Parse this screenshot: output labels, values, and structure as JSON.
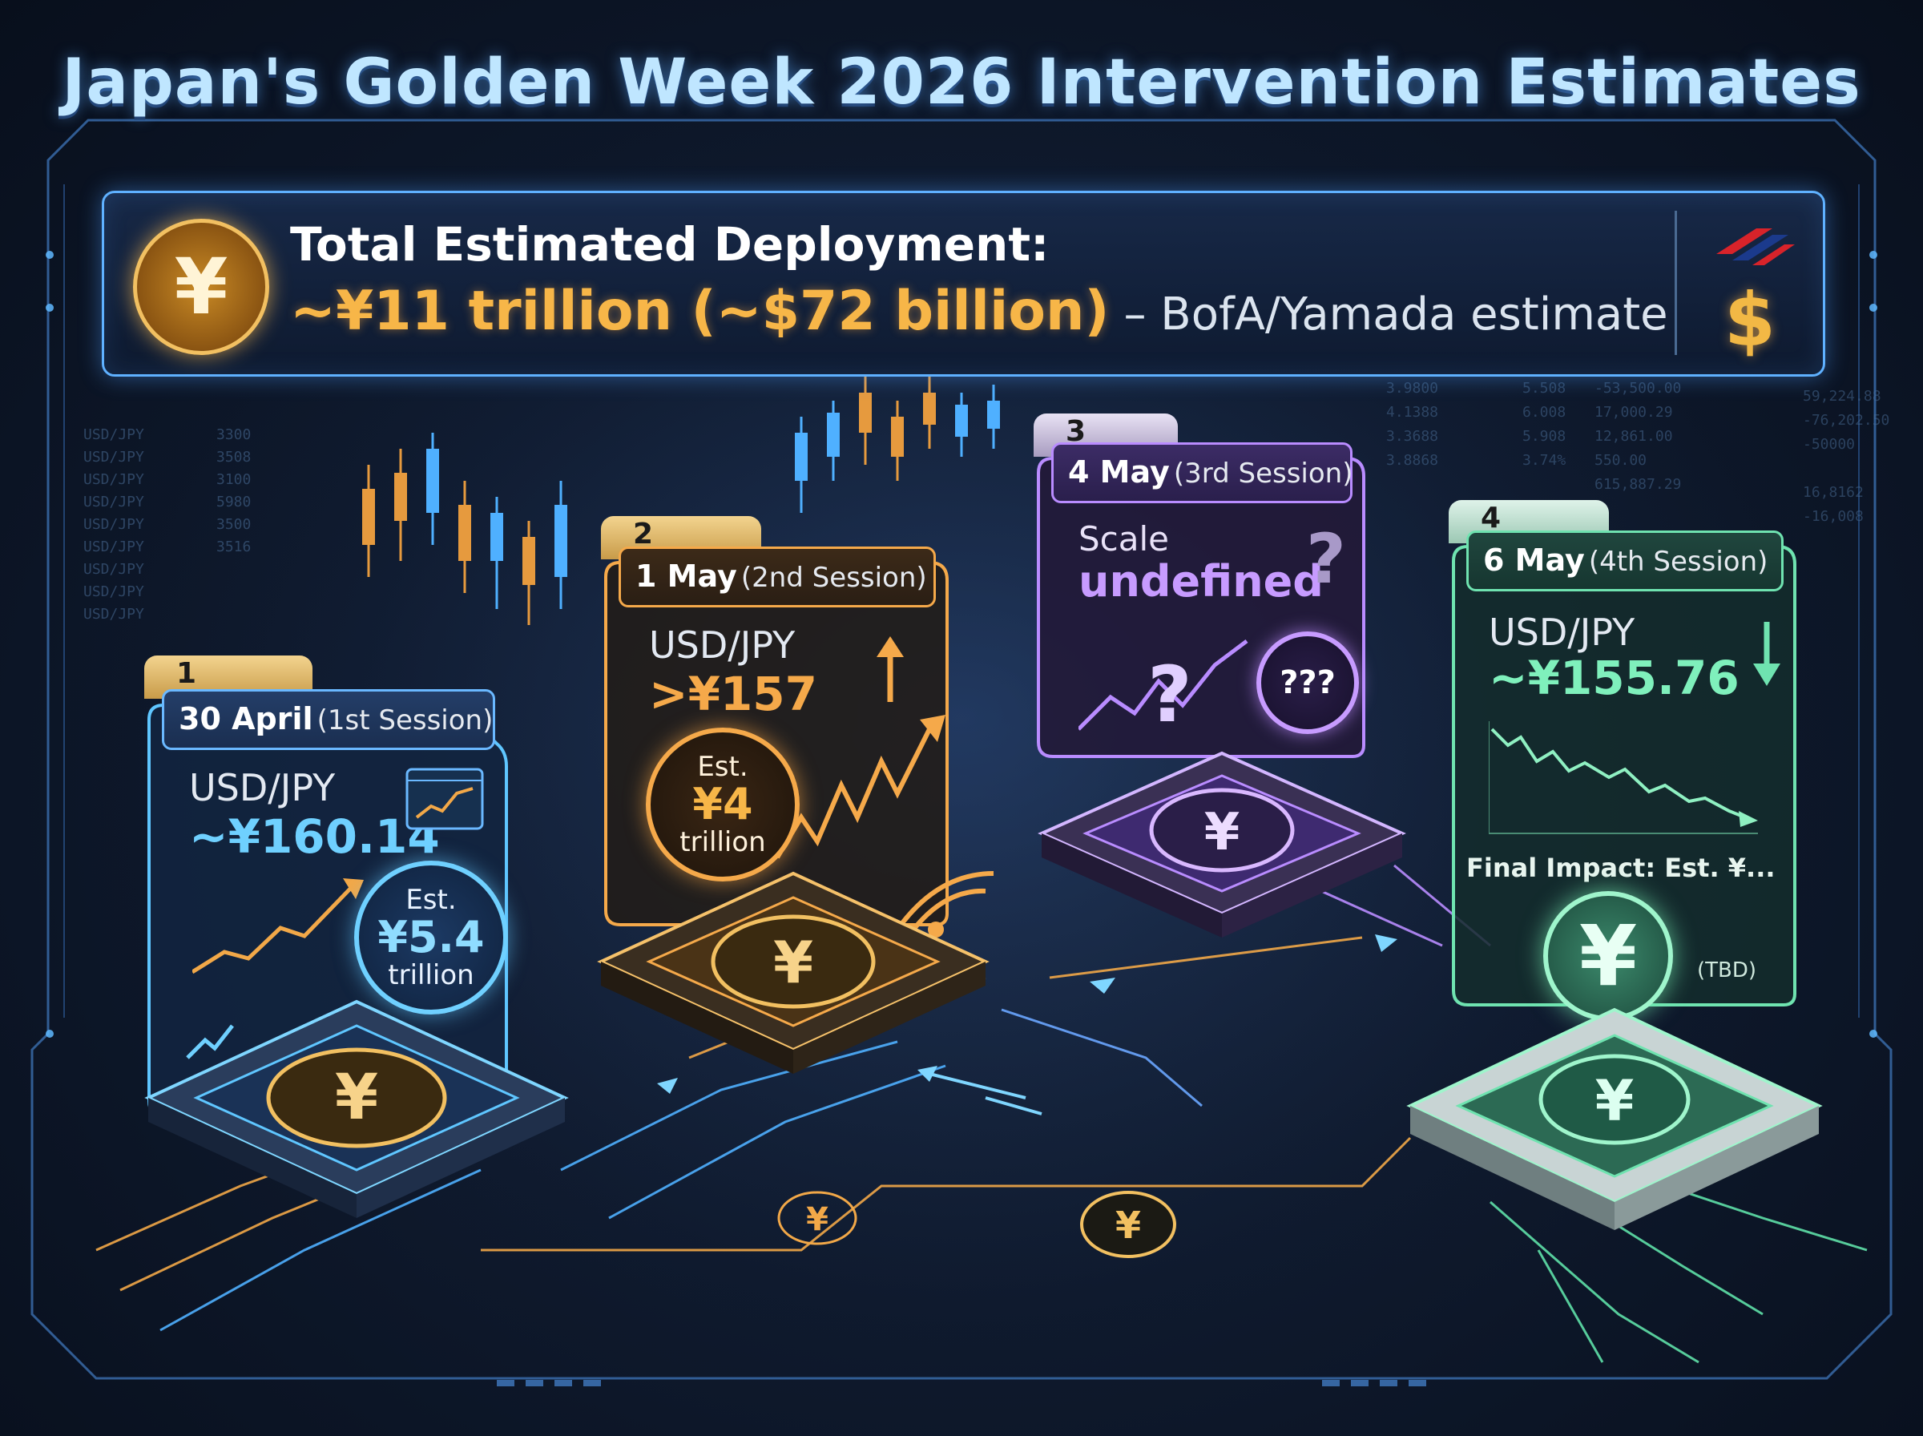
{
  "title": "Japan's Golden Week 2026 Intervention Estimates",
  "banner": {
    "coin_icon": "yen-coin-icon",
    "line1": "Total Estimated Deployment:",
    "amount": "~¥11 trillion (~$72 billion)",
    "source": "– BofA/Yamada estimate",
    "dollar_icon": "$",
    "logo_icon": "bank-logo-icon"
  },
  "sessions": [
    {
      "number": "1",
      "date": "30 April",
      "session": "(1st Session)",
      "pair": "USD/JPY",
      "rate": "~¥160.14",
      "est_label": "Est.",
      "est_value": "¥5.4",
      "est_unit": "trillion",
      "accent": "#5fc6ff"
    },
    {
      "number": "2",
      "date": "1 May",
      "session": "(2nd Session)",
      "pair": "USD/JPY",
      "rate": ">¥157",
      "est_label": "Est.",
      "est_value": "¥4",
      "est_unit": "trillion",
      "accent": "#f5a94a"
    },
    {
      "number": "3",
      "date": "4 May",
      "session": "(3rd Session)",
      "scale_label": "Scale",
      "scale_value": "undefined",
      "question": "?",
      "mystery": "???",
      "accent": "#b98cff"
    },
    {
      "number": "4",
      "date": "6 May",
      "session": "(4th Session)",
      "pair": "USD/JPY",
      "rate": "~¥155.76",
      "final_impact": "Final Impact: Est. ¥...",
      "tbd": "(TBD)",
      "accent": "#6fe3b0"
    }
  ],
  "yen_symbol": "¥",
  "colors": {
    "blue": "#5fc6ff",
    "orange": "#f5a94a",
    "purple": "#b98cff",
    "green": "#6fe3b0",
    "gold": "#f7b648"
  }
}
